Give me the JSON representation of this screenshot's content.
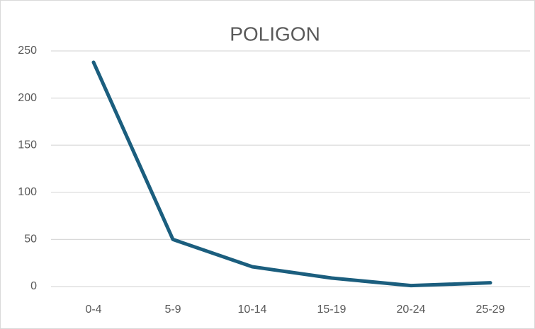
{
  "chart_data": {
    "type": "line",
    "title": "POLIGON",
    "categories": [
      "0-4",
      "5-9",
      "10-14",
      "15-19",
      "20-24",
      "25-29"
    ],
    "series": [
      {
        "name": "POLIGON",
        "color": "#1b5e7e",
        "values": [
          238,
          50,
          21,
          9,
          1,
          4
        ]
      }
    ],
    "ylim": [
      0,
      250
    ],
    "yticks": [
      0,
      50,
      100,
      150,
      200,
      250
    ],
    "grid": true
  }
}
